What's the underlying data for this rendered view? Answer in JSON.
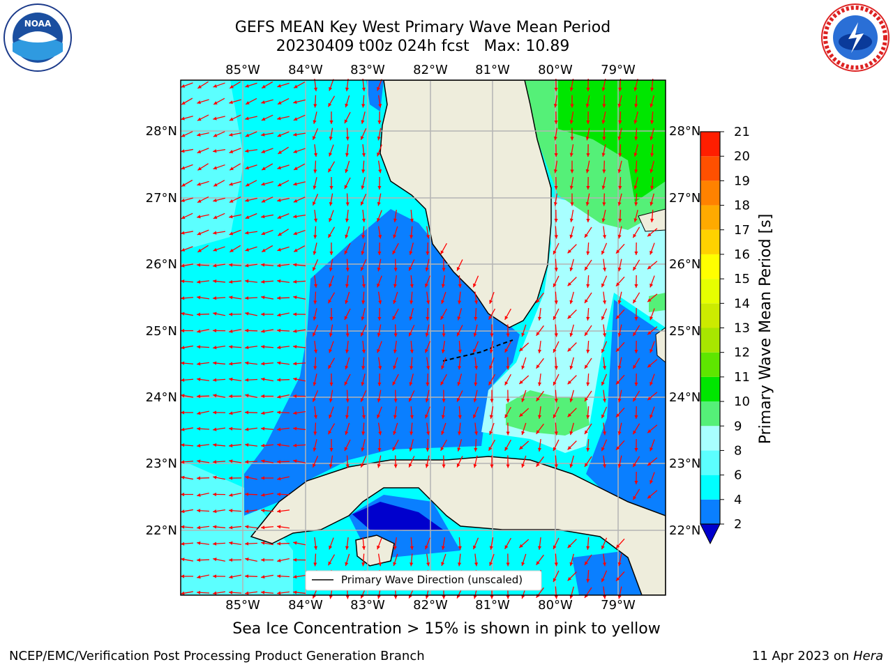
{
  "title_line1": "GEFS MEAN Key West Primary Wave Mean Period",
  "title_line2": "20230409 t00z 024h fcst   Max: 10.89",
  "lon_labels": [
    "85°W",
    "84°W",
    "83°W",
    "82°W",
    "81°W",
    "80°W",
    "79°W"
  ],
  "lat_labels": [
    "28°N",
    "27°N",
    "26°N",
    "25°N",
    "24°N",
    "23°N",
    "22°N"
  ],
  "colorbar": {
    "label": "Primary Wave Mean Period [s]",
    "ticks": [
      "2",
      "4",
      "6",
      "8",
      "9",
      "10",
      "11",
      "12",
      "13",
      "14",
      "15",
      "16",
      "17",
      "18",
      "19",
      "20",
      "21"
    ],
    "colors": [
      "#0000cd",
      "#0a7fff",
      "#00ffff",
      "#5cffff",
      "#a8ffff",
      "#55f078",
      "#00e600",
      "#5ee600",
      "#a8e600",
      "#cceb00",
      "#e6ff00",
      "#ffff00",
      "#ffd200",
      "#ffaa00",
      "#ff8200",
      "#ff5000",
      "#ff1e00",
      "#ff0000"
    ]
  },
  "legend_label": "Primary Wave Direction (unscaled)",
  "ice_note": "Sea Ice Concentration > 15% is shown in pink to yellow",
  "footer_left": "NCEP/EMC/Verification Post Processing Product Generation Branch",
  "footer_date": "11 Apr 2023 on ",
  "footer_host": "Hera",
  "logos": {
    "left": "noaa-logo",
    "right": "nws-logo"
  }
}
